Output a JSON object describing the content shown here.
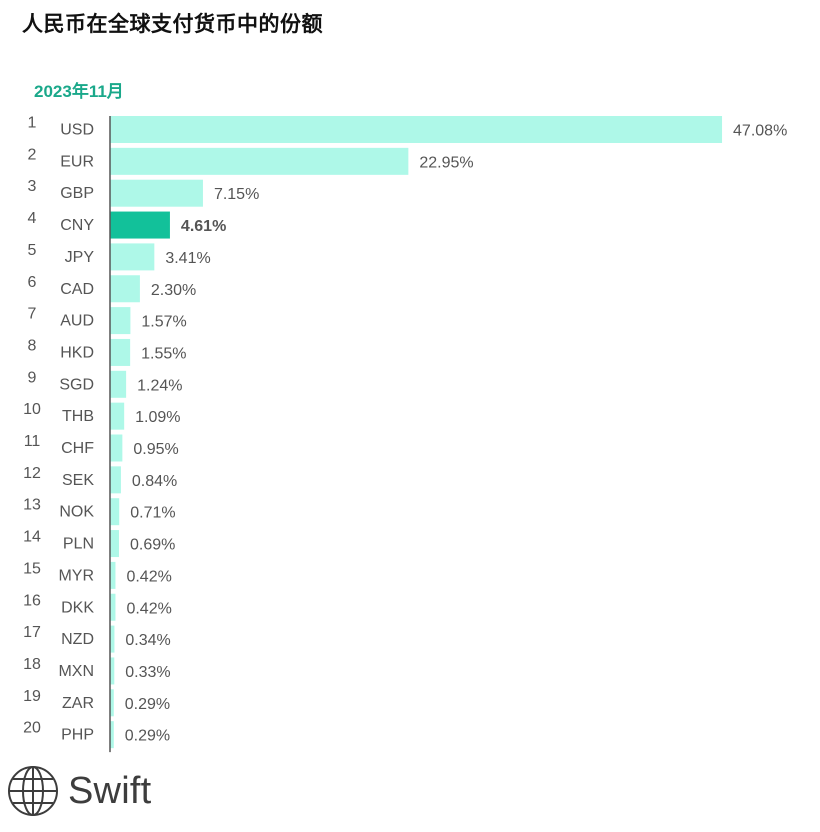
{
  "title": "人民币在全球支付货币中的份额",
  "subtitle": "2023年11月",
  "brand": {
    "name": "Swift",
    "icon": "globe-icon"
  },
  "colors": {
    "bar": "#aef8e8",
    "highlight": "#12c19a",
    "axis": "#555555",
    "text": "#555555"
  },
  "chart_data": {
    "type": "bar",
    "orientation": "horizontal",
    "highlight": "CNY",
    "xlim": [
      0,
      48
    ],
    "ranks": [
      "1",
      "2",
      "3",
      "4",
      "5",
      "6",
      "7",
      "8",
      "9",
      "10",
      "11",
      "12",
      "13",
      "14",
      "15",
      "16",
      "17",
      "18",
      "19",
      "20"
    ],
    "categories": [
      "USD",
      "EUR",
      "GBP",
      "CNY",
      "JPY",
      "CAD",
      "AUD",
      "HKD",
      "SGD",
      "THB",
      "CHF",
      "SEK",
      "NOK",
      "PLN",
      "MYR",
      "DKK",
      "NZD",
      "MXN",
      "ZAR",
      "PHP"
    ],
    "values": [
      47.08,
      22.95,
      7.15,
      4.61,
      3.41,
      2.3,
      1.57,
      1.55,
      1.24,
      1.09,
      0.95,
      0.84,
      0.71,
      0.69,
      0.42,
      0.42,
      0.34,
      0.33,
      0.29,
      0.29
    ],
    "labels": [
      "47.08%",
      "22.95%",
      "7.15%",
      "4.61%",
      "3.41%",
      "2.30%",
      "1.57%",
      "1.55%",
      "1.24%",
      "1.09%",
      "0.95%",
      "0.84%",
      "0.71%",
      "0.69%",
      "0.42%",
      "0.42%",
      "0.34%",
      "0.33%",
      "0.29%",
      "0.29%"
    ]
  }
}
